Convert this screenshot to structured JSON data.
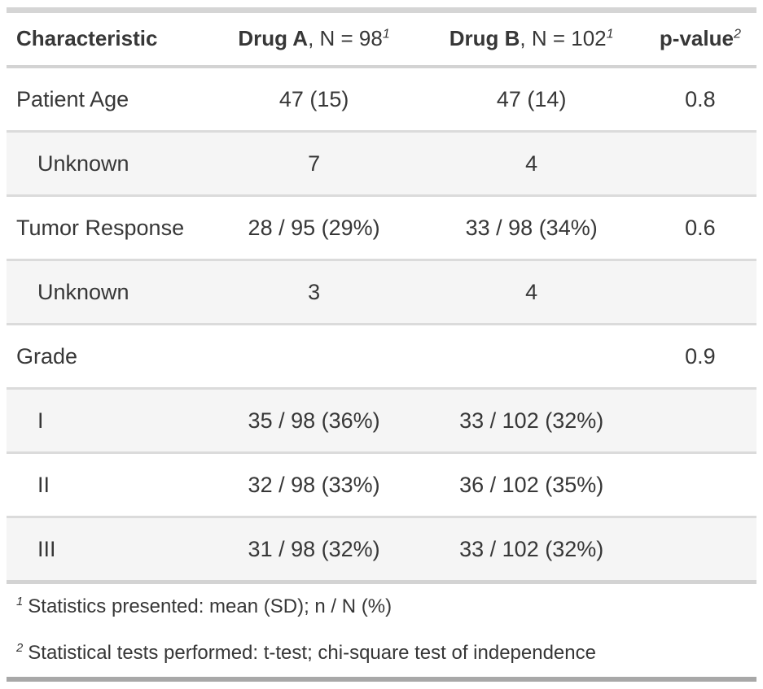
{
  "table": {
    "header": {
      "characteristic": "Characteristic",
      "drug_a": {
        "name": "Drug A",
        "rest": ", N = 98",
        "footnote_mark": "1"
      },
      "drug_b": {
        "name": "Drug B",
        "rest": ", N = 102",
        "footnote_mark": "1"
      },
      "p_value": {
        "name": "p-value",
        "footnote_mark": "2"
      }
    },
    "rows": [
      {
        "label": "Patient Age",
        "drug_a": "47 (15)",
        "drug_b": "47 (14)",
        "p_value": "0.8"
      },
      {
        "label": "Unknown",
        "drug_a": "7",
        "drug_b": "4",
        "p_value": ""
      },
      {
        "label": "Tumor Response",
        "drug_a": "28 / 95 (29%)",
        "drug_b": "33 / 98 (34%)",
        "p_value": "0.6"
      },
      {
        "label": "Unknown",
        "drug_a": "3",
        "drug_b": "4",
        "p_value": ""
      },
      {
        "label": "Grade",
        "drug_a": "",
        "drug_b": "",
        "p_value": "0.9"
      },
      {
        "label": "I",
        "drug_a": "35 / 98 (36%)",
        "drug_b": "33 / 102 (32%)",
        "p_value": ""
      },
      {
        "label": "II",
        "drug_a": "32 / 98 (33%)",
        "drug_b": "36 / 102 (35%)",
        "p_value": ""
      },
      {
        "label": "III",
        "drug_a": "31 / 98 (32%)",
        "drug_b": "33 / 102 (32%)",
        "p_value": ""
      }
    ],
    "footnotes": [
      {
        "mark": "1",
        "text": "Statistics presented: mean (SD); n / N (%)"
      },
      {
        "mark": "2",
        "text": "Statistical tests performed: t-test; chi-square test of independence"
      }
    ],
    "colors": {
      "text": "#373737",
      "stripe_background": "#F5F5F5",
      "light_border": "#D3D3D3",
      "dark_border": "#A8A8A8"
    }
  },
  "chart_data": {
    "type": "table",
    "title": "Summary statistics table comparing Drug A and Drug B",
    "columns": [
      "Characteristic",
      "Drug A, N = 98",
      "Drug B, N = 102",
      "p-value"
    ],
    "rows": [
      [
        "Patient Age",
        "47 (15)",
        "47 (14)",
        "0.8"
      ],
      [
        "Unknown",
        "7",
        "4",
        ""
      ],
      [
        "Tumor Response",
        "28 / 95 (29%)",
        "33 / 98 (34%)",
        "0.6"
      ],
      [
        "Unknown",
        "3",
        "4",
        ""
      ],
      [
        "Grade",
        "",
        "",
        "0.9"
      ],
      [
        "I",
        "35 / 98 (36%)",
        "33 / 102 (32%)",
        ""
      ],
      [
        "II",
        "32 / 98 (33%)",
        "36 / 102 (35%)",
        ""
      ],
      [
        "III",
        "31 / 98 (32%)",
        "33 / 102 (32%)",
        ""
      ]
    ],
    "footnotes": [
      "1 Statistics presented: mean (SD); n / N (%)",
      "2 Statistical tests performed: t-test; chi-square test of independence"
    ]
  }
}
